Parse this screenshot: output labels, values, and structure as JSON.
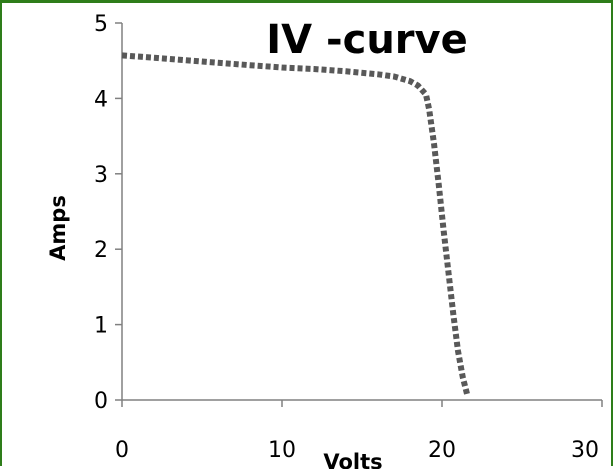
{
  "chart_data": {
    "type": "line",
    "title": "IV -curve",
    "xlabel": "Volts",
    "ylabel": "Amps",
    "xlim": [
      0,
      30
    ],
    "ylim": [
      0,
      5
    ],
    "x_ticks": [
      0,
      10,
      20,
      30
    ],
    "y_ticks": [
      0,
      1,
      2,
      3,
      4,
      5
    ],
    "x_tick_labels": [
      "0",
      "10",
      "20",
      "30"
    ],
    "y_tick_labels": [
      "0",
      "1",
      "2",
      "3",
      "4",
      "5"
    ],
    "grid": false,
    "legend": "none",
    "series": [
      {
        "color": "#595959",
        "line_style": "dotted",
        "x": [
          0,
          2,
          5,
          8,
          10,
          12,
          14,
          16,
          17,
          18,
          18.5,
          19,
          19.2,
          19.5,
          19.8,
          20.1,
          20.4,
          20.7,
          21.0,
          21.3,
          21.6
        ],
        "y": [
          4.57,
          4.54,
          4.49,
          4.44,
          4.41,
          4.39,
          4.36,
          4.32,
          4.29,
          4.23,
          4.17,
          4.05,
          3.85,
          3.4,
          2.85,
          2.25,
          1.7,
          1.15,
          0.65,
          0.3,
          0.05
        ]
      }
    ]
  }
}
